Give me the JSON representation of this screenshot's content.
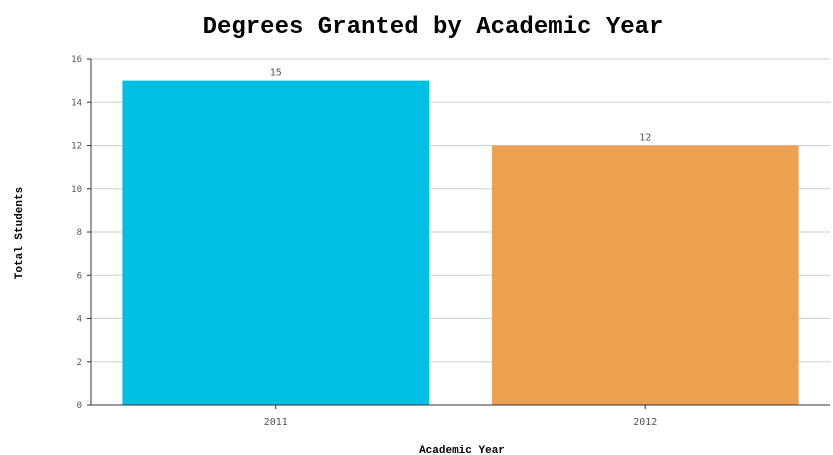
{
  "chart_data": {
    "type": "bar",
    "title": "Degrees Granted by Academic Year",
    "xlabel": "Academic Year",
    "ylabel": "Total Students",
    "categories": [
      "2011",
      "2012"
    ],
    "values": [
      15,
      12
    ],
    "data_labels": [
      "15",
      "12"
    ],
    "colors": [
      "#00bfe3",
      "#eda150"
    ],
    "ylim": [
      0,
      16
    ],
    "yticks": [
      0,
      2,
      4,
      6,
      8,
      10,
      12,
      14,
      16
    ],
    "grid": true,
    "legend": "none"
  }
}
